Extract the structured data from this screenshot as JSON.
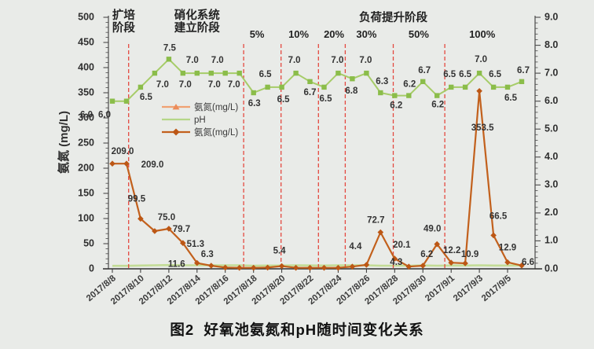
{
  "figure": {
    "caption": "图2  好氧池氨氮和pH随时间变化关系"
  },
  "chart_data": {
    "type": "line",
    "dates": [
      "2017/8/8",
      "2017/8/9",
      "2017/8/10",
      "2017/8/11",
      "2017/8/12",
      "2017/8/13",
      "2017/8/14",
      "2017/8/15",
      "2017/8/16",
      "2017/8/17",
      "2017/8/18",
      "2017/8/19",
      "2017/8/20",
      "2017/8/21",
      "2017/8/22",
      "2017/8/23",
      "2017/8/24",
      "2017/8/25",
      "2017/8/26",
      "2017/8/27",
      "2017/8/28",
      "2017/8/29",
      "2017/8/30",
      "2017/8/31",
      "2017/9/1",
      "2017/9/2",
      "2017/9/3",
      "2017/9/4",
      "2017/9/5",
      "2017/9/6"
    ],
    "x_axis": {
      "tick_every": 2
    },
    "left_axis": {
      "title": "氨氮 (mg/L)",
      "min": 0,
      "max": 500,
      "major": 50,
      "minor": 10
    },
    "right_axis": {
      "min": 0,
      "max": 9,
      "major": 1,
      "minor": 0.2,
      "decimals": 1
    },
    "series": [
      {
        "name": "氨氮(mg/L)",
        "axis": "left",
        "marker": "diamond",
        "values": [
          209.0,
          209.0,
          99.5,
          75.0,
          79.7,
          51.3,
          11.6,
          6.3,
          2.5,
          2.0,
          2.0,
          2.5,
          5.4,
          2.0,
          2.0,
          2.0,
          2.0,
          4.4,
          8.0,
          72.7,
          20.1,
          4.3,
          6.2,
          49.0,
          12.2,
          10.9,
          353.5,
          66.5,
          12.9,
          6.6
        ],
        "labels": [
          "209.0",
          "209.0",
          "99.5",
          "75.0",
          "79.7",
          "51.3",
          "11.6",
          "6.3",
          null,
          null,
          null,
          null,
          "5.4",
          null,
          null,
          null,
          null,
          "4.4",
          null,
          "72.7",
          "20.1",
          "4.3",
          "6.2",
          "49.0",
          "12.2",
          "10.9",
          "353.5",
          "66.5",
          "12.9",
          "6.6"
        ],
        "label_offsets": [
          [
            13,
            -15
          ],
          [
            33,
            2
          ],
          [
            -5,
            -25
          ],
          [
            15,
            -17
          ],
          [
            16,
            1
          ],
          [
            16,
            2
          ],
          [
            -26,
            2
          ],
          [
            -5,
            -14
          ],
          null,
          null,
          null,
          null,
          [
            -3,
            -19
          ],
          null,
          null,
          null,
          null,
          [
            4,
            -25
          ],
          null,
          [
            -6,
            -15
          ],
          [
            9,
            -17
          ],
          [
            -16,
            -5
          ],
          [
            5,
            -14
          ],
          [
            -6,
            -19
          ],
          [
            1,
            -15
          ],
          [
            6,
            -11
          ],
          [
            4,
            47
          ],
          [
            6,
            -24
          ],
          [
            0,
            -18
          ],
          [
            8,
            -4
          ]
        ]
      },
      {
        "name": "pH",
        "axis": "right",
        "marker": "square",
        "values": [
          6.0,
          6.0,
          6.5,
          7.0,
          7.5,
          7.0,
          7.0,
          7.0,
          7.0,
          7.0,
          6.3,
          6.5,
          6.5,
          7.0,
          6.7,
          6.5,
          7.0,
          6.8,
          7.0,
          6.3,
          6.2,
          6.2,
          6.7,
          6.2,
          6.5,
          6.5,
          7.0,
          6.5,
          6.5,
          6.7
        ],
        "labels": [
          "6.0",
          "6.0",
          "6.5",
          "7.0",
          "7.5",
          "7.0",
          "7.0",
          "7.0",
          "7.0",
          "7.0",
          "6.3",
          "6.5",
          "6.5",
          "7.0",
          "6.7",
          "6.5",
          "7.0",
          "6.8",
          "7.0",
          "6.3",
          "6.2",
          "6.2",
          "6.7",
          "6.2",
          "6.5",
          "6.5",
          "7.0",
          "6.5",
          "6.5",
          "6.7"
        ],
        "label_offsets": [
          [
            -33,
            18
          ],
          [
            -28,
            18
          ],
          [
            7,
            13
          ],
          [
            10,
            15
          ],
          [
            1,
            -14
          ],
          [
            3,
            15
          ],
          [
            -6,
            -16
          ],
          [
            4,
            15
          ],
          [
            -10,
            -16
          ],
          [
            -7,
            15
          ],
          [
            1,
            14
          ],
          [
            -3,
            -16
          ],
          [
            2,
            16
          ],
          [
            -2,
            -16
          ],
          [
            0,
            14
          ],
          [
            2,
            15
          ],
          [
            -1,
            -16
          ],
          [
            -1,
            16
          ],
          [
            -1,
            -16
          ],
          [
            2,
            -14
          ],
          [
            2,
            13
          ],
          [
            1,
            -14
          ],
          [
            2,
            -14
          ],
          [
            1,
            12
          ],
          [
            -2,
            -16
          ],
          [
            0,
            -16
          ],
          [
            2,
            -17
          ],
          [
            2,
            -16
          ],
          [
            4,
            14
          ],
          [
            2,
            -14
          ]
        ]
      }
    ],
    "phases": [
      {
        "lines": [
          "扩培",
          "阶段"
        ],
        "day": 0.8
      },
      {
        "lines": [
          "硝化系统",
          "建立阶段"
        ],
        "day": 6.0
      },
      {
        "lines": [
          "负荷提升阶段"
        ],
        "day": 19.9
      }
    ],
    "load_percents": [
      {
        "label": "5%",
        "day": 10.25
      },
      {
        "label": "10%",
        "day": 13.2
      },
      {
        "label": "20%",
        "day": 15.7
      },
      {
        "label": "30%",
        "day": 18.0
      },
      {
        "label": "50%",
        "day": 21.7
      },
      {
        "label": "100%",
        "day": 26.2
      }
    ],
    "dividers_day": [
      1.15,
      9.3,
      11.95,
      14.6,
      16.5,
      19.9,
      23.55
    ],
    "legend": {
      "items": [
        {
          "label": "氨氮(mg/L)",
          "marker": "triangle",
          "color": "#f0a172",
          "marker_color": "#ec8c5a"
        },
        {
          "label": "pH",
          "marker": "none",
          "color": "#b5d788",
          "marker_color": "#b5d788"
        },
        {
          "label": "氨氮(mg/L)",
          "marker": "diamond",
          "color": "#c2601c",
          "marker_color": "#bc5715"
        }
      ]
    },
    "colors": {
      "background": "#e9ebe8",
      "axis": "#4a4a4a",
      "x_axis_line": "#333333",
      "tick_text": "#2f2f2f",
      "date_text": "#3d3d3d",
      "data_label": "#333333",
      "phase_text": "#222222",
      "divider": "#e4382e",
      "ammonia_line": "#c2601c",
      "ammonia_marker": "#bc5715",
      "ph_line": "#a6cc68",
      "ph_marker": "#8bbd4a",
      "ph_left_line": "#c3dc96",
      "legend_text": "#3a3a3a",
      "caption_text": "#111111"
    }
  }
}
